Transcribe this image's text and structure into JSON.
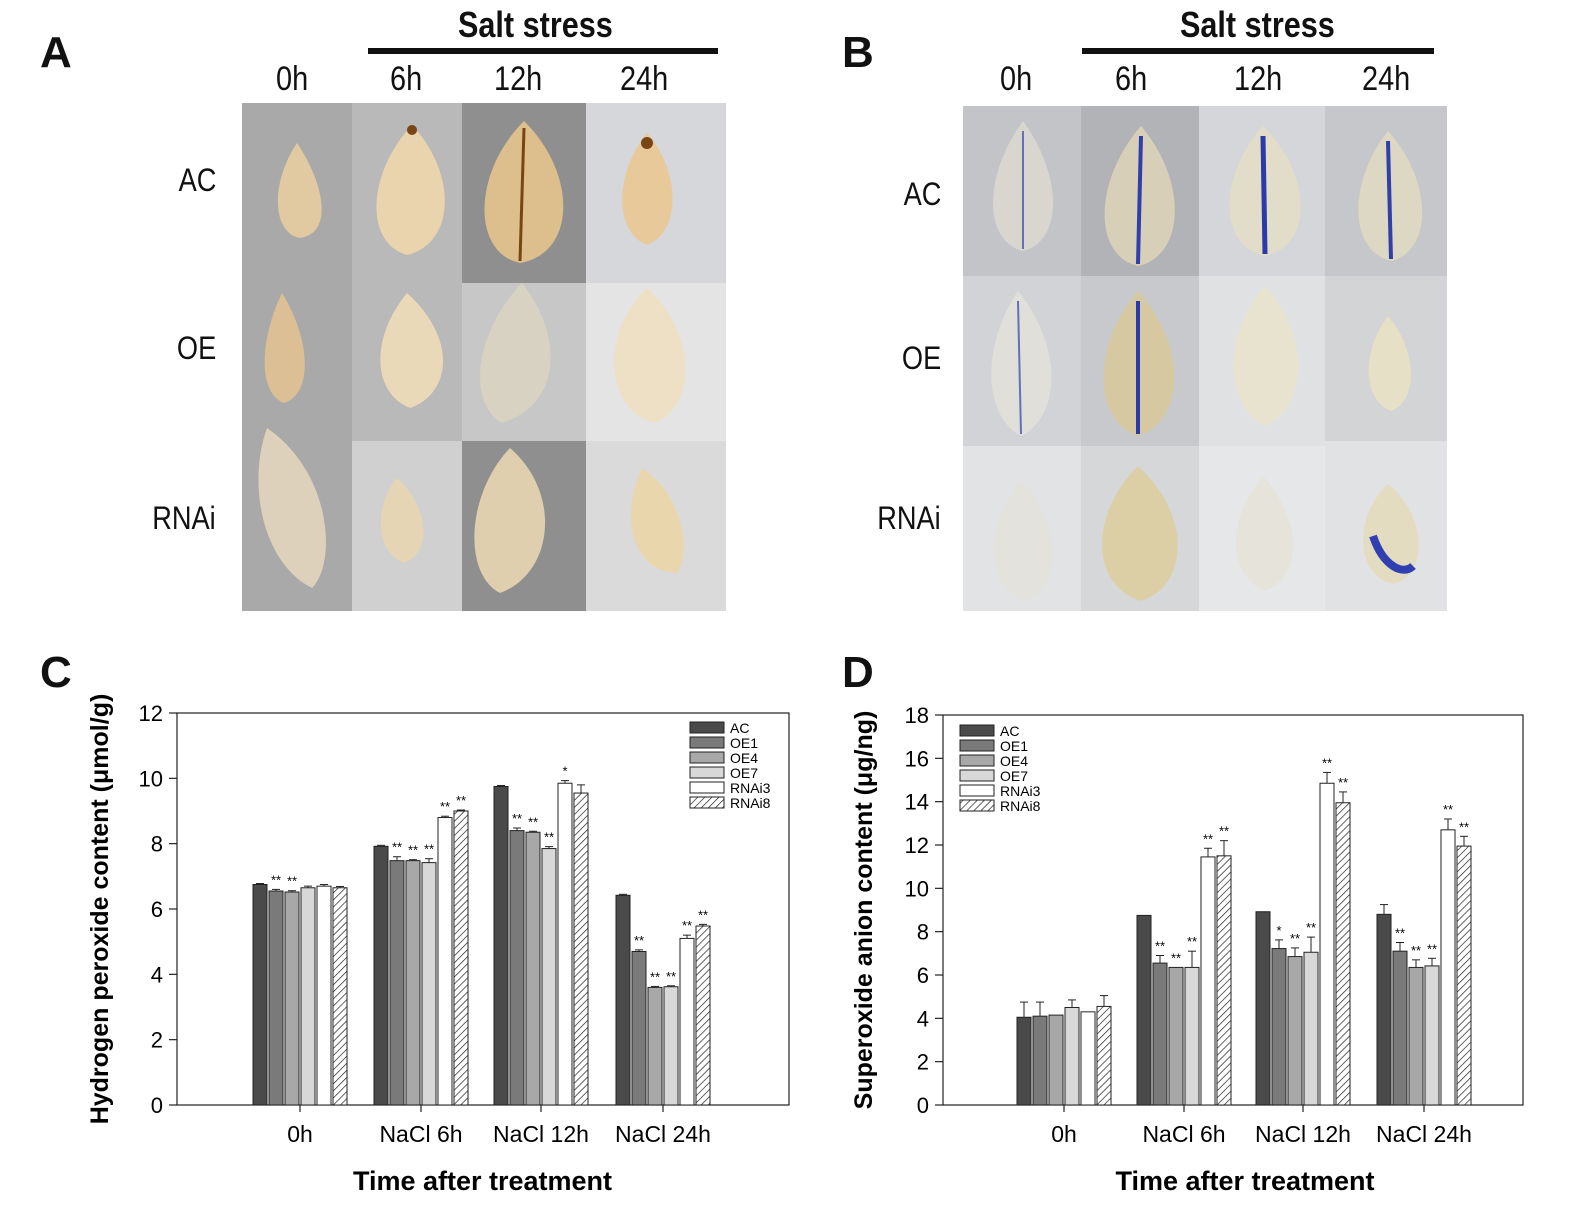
{
  "panels": {
    "A": {
      "letter": "A",
      "group_label": "Salt stress",
      "columns": [
        "0h",
        "6h",
        "12h",
        "24h"
      ],
      "rows": [
        "AC",
        "OE",
        "RNAi"
      ]
    },
    "B": {
      "letter": "B",
      "group_label": "Salt stress",
      "columns": [
        "0h",
        "6h",
        "12h",
        "24h"
      ],
      "rows": [
        "AC",
        "OE",
        "RNAi"
      ]
    },
    "C": {
      "letter": "C"
    },
    "D": {
      "letter": "D"
    }
  },
  "chart_data": [
    {
      "id": "C",
      "type": "bar",
      "ylabel": "Hydrogen peroxide content (μmol/g)",
      "xlabel": "Time after treatment",
      "ylim": [
        0,
        12
      ],
      "yticks": [
        0,
        2,
        4,
        6,
        8,
        10,
        12
      ],
      "legend_position": "top-right",
      "categories": [
        "0h",
        "NaCl 6h",
        "NaCl 12h",
        "NaCl 24h"
      ],
      "series": [
        {
          "name": "AC",
          "fill": "#4a4a4a",
          "values": [
            6.75,
            7.92,
            9.75,
            6.42
          ],
          "errors": [
            0.03,
            0.03,
            0.03,
            0.03
          ],
          "sig": [
            "",
            "",
            "",
            ""
          ]
        },
        {
          "name": "OE1",
          "fill": "#7a7a7a",
          "values": [
            6.55,
            7.48,
            8.4,
            4.7
          ],
          "errors": [
            0.05,
            0.12,
            0.08,
            0.05
          ],
          "sig": [
            "**",
            "**",
            "**",
            "**"
          ]
        },
        {
          "name": "OE4",
          "fill": "#a8a8a8",
          "values": [
            6.52,
            7.48,
            8.35,
            3.6
          ],
          "errors": [
            0.04,
            0.03,
            0.03,
            0.03
          ],
          "sig": [
            "**",
            "**",
            "**",
            "**"
          ]
        },
        {
          "name": "OE7",
          "fill": "#d8d8d8",
          "values": [
            6.65,
            7.42,
            7.85,
            3.62
          ],
          "errors": [
            0.05,
            0.12,
            0.06,
            0.03
          ],
          "sig": [
            "",
            "**",
            "**",
            "**"
          ]
        },
        {
          "name": "RNAi3",
          "fill": "#ffffff",
          "values": [
            6.7,
            8.8,
            9.85,
            5.1
          ],
          "errors": [
            0.05,
            0.04,
            0.08,
            0.1
          ],
          "sig": [
            "",
            "**",
            "*",
            "**"
          ]
        },
        {
          "name": "RNAi8",
          "fill": "hatch",
          "values": [
            6.65,
            9.0,
            9.55,
            5.48
          ],
          "errors": [
            0.04,
            0.03,
            0.25,
            0.05
          ],
          "sig": [
            "",
            "**",
            "",
            "**"
          ]
        }
      ]
    },
    {
      "id": "D",
      "type": "bar",
      "ylabel": "Superoxide anion content (μg/ng)",
      "xlabel": "Time after treatment",
      "ylim": [
        0,
        18
      ],
      "yticks": [
        0,
        2,
        4,
        6,
        8,
        10,
        12,
        14,
        16,
        18
      ],
      "legend_position": "top-left",
      "categories": [
        "0h",
        "NaCl 6h",
        "NaCl 12h",
        "NaCl 24h"
      ],
      "series": [
        {
          "name": "AC",
          "fill": "#4a4a4a",
          "values": [
            4.05,
            8.75,
            8.92,
            8.8
          ],
          "errors": [
            0.7,
            0.0,
            0.0,
            0.45
          ],
          "sig": [
            "",
            "",
            "",
            ""
          ]
        },
        {
          "name": "OE1",
          "fill": "#7a7a7a",
          "values": [
            4.1,
            6.55,
            7.22,
            7.1
          ],
          "errors": [
            0.65,
            0.35,
            0.4,
            0.4
          ],
          "sig": [
            "",
            "**",
            "*",
            "**"
          ]
        },
        {
          "name": "OE4",
          "fill": "#a8a8a8",
          "values": [
            4.15,
            6.35,
            6.85,
            6.35
          ],
          "errors": [
            0.0,
            0.0,
            0.4,
            0.35
          ],
          "sig": [
            "",
            "**",
            "**",
            "**"
          ]
        },
        {
          "name": "OE7",
          "fill": "#d8d8d8",
          "values": [
            4.5,
            6.35,
            7.05,
            6.42
          ],
          "errors": [
            0.35,
            0.75,
            0.7,
            0.35
          ],
          "sig": [
            "",
            "**",
            "**",
            "**"
          ]
        },
        {
          "name": "RNAi3",
          "fill": "#ffffff",
          "values": [
            4.3,
            11.45,
            14.85,
            12.7
          ],
          "errors": [
            0.0,
            0.4,
            0.5,
            0.5
          ],
          "sig": [
            "",
            "**",
            "**",
            "**"
          ]
        },
        {
          "name": "RNAi8",
          "fill": "hatch",
          "values": [
            4.55,
            11.5,
            13.95,
            11.95
          ],
          "errors": [
            0.5,
            0.7,
            0.5,
            0.45
          ],
          "sig": [
            "",
            "**",
            "**",
            "**"
          ]
        }
      ]
    }
  ]
}
